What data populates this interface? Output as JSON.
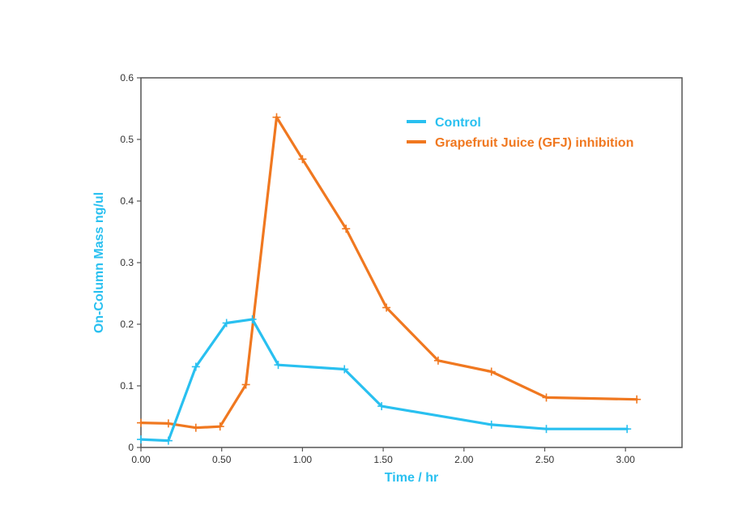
{
  "chart_data": {
    "type": "line",
    "title": "",
    "xlabel": "Time / hr",
    "ylabel": "On-Column Mass ng/ul",
    "xlim": [
      0,
      3.35
    ],
    "ylim": [
      0,
      0.6
    ],
    "x_ticks": [
      0,
      0.5,
      1.0,
      1.5,
      2.0,
      2.5,
      3.0
    ],
    "x_tick_labels": [
      "0.00",
      "0.50",
      "1.00",
      "1.50",
      "2.00",
      "2.50",
      "3.00"
    ],
    "y_ticks": [
      0,
      0.1,
      0.2,
      0.3,
      0.4,
      0.5,
      0.6
    ],
    "y_tick_labels": [
      "0",
      "0.1",
      "0.2",
      "0.3",
      "0.4",
      "0.5",
      "0.6"
    ],
    "grid": false,
    "legend_position": "top-right",
    "series": [
      {
        "name": "Control",
        "color": "#29c0f0",
        "x": [
          0,
          0.17,
          0.34,
          0.53,
          0.69,
          0.85,
          1.26,
          1.49,
          2.17,
          2.51,
          3.01
        ],
        "y": [
          0.013,
          0.011,
          0.131,
          0.202,
          0.208,
          0.134,
          0.127,
          0.067,
          0.037,
          0.03,
          0.03
        ]
      },
      {
        "name": "Grapefruit Juice (GFJ) inhibition",
        "color": "#f07820",
        "x": [
          0,
          0.17,
          0.34,
          0.49,
          0.65,
          0.84,
          1.0,
          1.27,
          1.52,
          1.84,
          2.17,
          2.51,
          3.07
        ],
        "y": [
          0.04,
          0.039,
          0.032,
          0.034,
          0.102,
          0.536,
          0.468,
          0.355,
          0.227,
          0.141,
          0.123,
          0.081,
          0.078
        ]
      }
    ]
  }
}
